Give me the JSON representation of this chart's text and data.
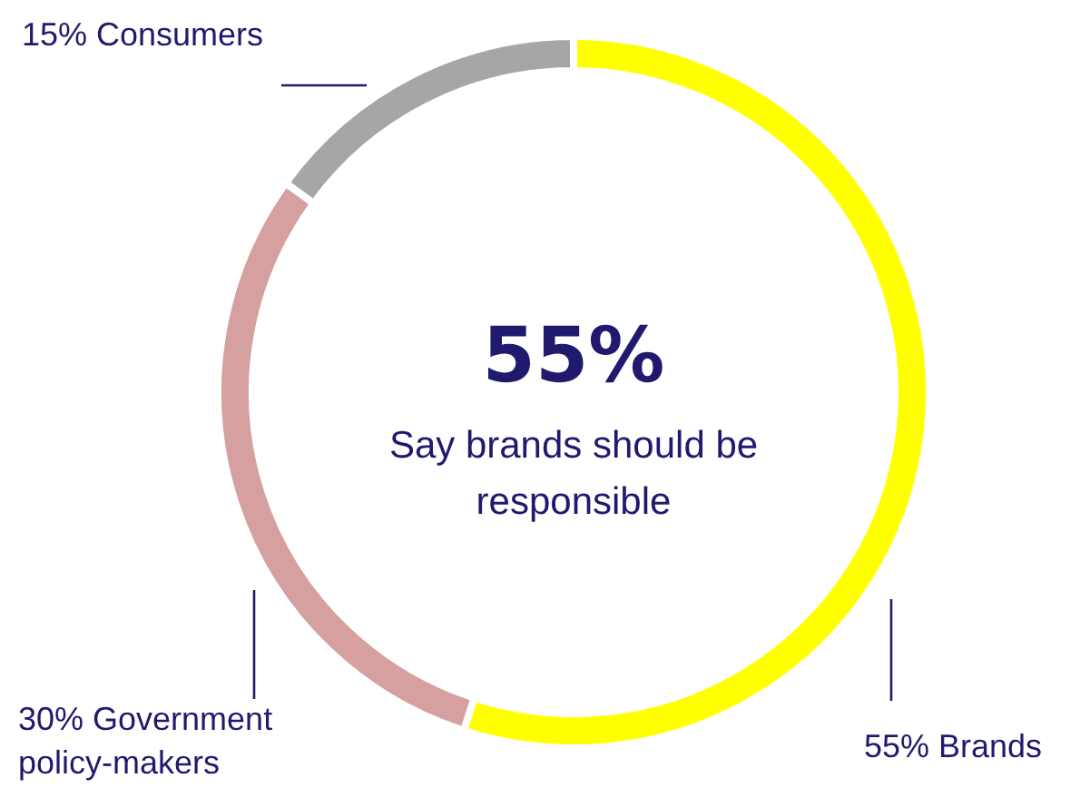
{
  "chart_data": {
    "type": "donut",
    "categories": [
      "Brands",
      "Government policy-makers",
      "Consumers"
    ],
    "values": [
      55,
      30,
      15
    ],
    "colors": [
      "#ffff00",
      "#d5a09f",
      "#a6a6a6"
    ],
    "value_labels": [
      "55%",
      "30%",
      "15%"
    ],
    "annotations": [
      "55%",
      "Say brands should be responsible"
    ]
  }
}
